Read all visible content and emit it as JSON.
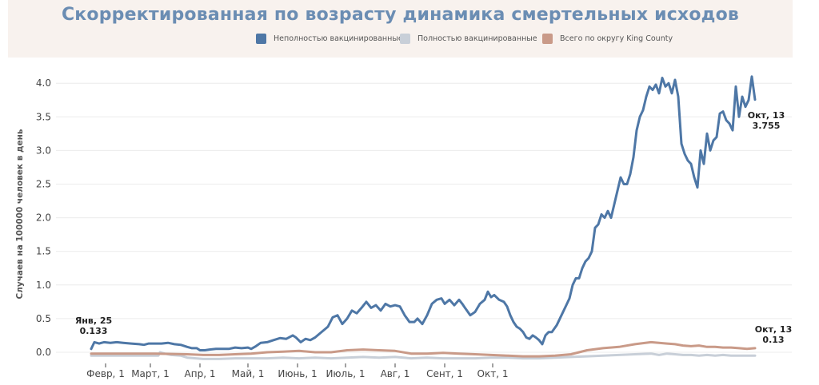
{
  "chart_data": {
    "type": "line",
    "title": "Скорректированная по возрасту динамика смертельных исходов",
    "ylabel": "Случаев на 100000 человек в день",
    "xlabel": "",
    "ylim": [
      0,
      4.3
    ],
    "yticks": [
      "0.0",
      "0.5",
      "1.0",
      "1.5",
      "2.0",
      "2.5",
      "3.0",
      "3.5",
      "4.0"
    ],
    "xticks": [
      "Февр, 1",
      "Март, 1",
      "Апр, 1",
      "Май, 1",
      "Июнь, 1",
      "Июль, 1",
      "Авг, 1",
      "Сент, 1",
      "Окт, 1"
    ],
    "grid": true,
    "legend_position": "top",
    "series": [
      {
        "name": "Неполностью вакцинированные",
        "color": "#4e77a6",
        "points": [
          [
            0,
            0.05
          ],
          [
            2,
            0.15
          ],
          [
            5,
            0.13
          ],
          [
            8,
            0.15
          ],
          [
            12,
            0.14
          ],
          [
            16,
            0.15
          ],
          [
            20,
            0.14
          ],
          [
            25,
            0.13
          ],
          [
            30,
            0.12
          ],
          [
            33,
            0.11
          ],
          [
            36,
            0.13
          ],
          [
            40,
            0.13
          ],
          [
            44,
            0.13
          ],
          [
            48,
            0.14
          ],
          [
            52,
            0.12
          ],
          [
            56,
            0.11
          ],
          [
            60,
            0.08
          ],
          [
            63,
            0.06
          ],
          [
            66,
            0.06
          ],
          [
            68,
            0.03
          ],
          [
            71,
            0.03
          ],
          [
            74,
            0.04
          ],
          [
            78,
            0.05
          ],
          [
            82,
            0.05
          ],
          [
            86,
            0.05
          ],
          [
            90,
            0.07
          ],
          [
            94,
            0.06
          ],
          [
            98,
            0.07
          ],
          [
            100,
            0.05
          ],
          [
            103,
            0.09
          ],
          [
            106,
            0.14
          ],
          [
            110,
            0.15
          ],
          [
            114,
            0.18
          ],
          [
            118,
            0.21
          ],
          [
            122,
            0.2
          ],
          [
            126,
            0.25
          ],
          [
            128,
            0.22
          ],
          [
            131,
            0.15
          ],
          [
            134,
            0.2
          ],
          [
            137,
            0.18
          ],
          [
            140,
            0.22
          ],
          [
            143,
            0.28
          ],
          [
            146,
            0.34
          ],
          [
            148,
            0.38
          ],
          [
            151,
            0.52
          ],
          [
            154,
            0.55
          ],
          [
            157,
            0.42
          ],
          [
            160,
            0.5
          ],
          [
            163,
            0.62
          ],
          [
            166,
            0.58
          ],
          [
            169,
            0.66
          ],
          [
            172,
            0.75
          ],
          [
            175,
            0.66
          ],
          [
            178,
            0.7
          ],
          [
            181,
            0.62
          ],
          [
            184,
            0.72
          ],
          [
            187,
            0.68
          ],
          [
            190,
            0.7
          ],
          [
            193,
            0.68
          ],
          [
            196,
            0.55
          ],
          [
            199,
            0.45
          ],
          [
            202,
            0.45
          ],
          [
            204,
            0.5
          ],
          [
            207,
            0.42
          ],
          [
            210,
            0.55
          ],
          [
            213,
            0.72
          ],
          [
            216,
            0.78
          ],
          [
            219,
            0.8
          ],
          [
            221,
            0.72
          ],
          [
            224,
            0.78
          ],
          [
            227,
            0.7
          ],
          [
            230,
            0.78
          ],
          [
            232,
            0.72
          ],
          [
            234,
            0.65
          ],
          [
            237,
            0.55
          ],
          [
            240,
            0.6
          ],
          [
            243,
            0.72
          ],
          [
            246,
            0.78
          ],
          [
            248,
            0.9
          ],
          [
            250,
            0.82
          ],
          [
            252,
            0.85
          ],
          [
            255,
            0.78
          ],
          [
            258,
            0.75
          ],
          [
            260,
            0.68
          ],
          [
            262,
            0.55
          ],
          [
            264,
            0.45
          ],
          [
            266,
            0.38
          ],
          [
            268,
            0.35
          ],
          [
            270,
            0.3
          ],
          [
            272,
            0.22
          ],
          [
            274,
            0.2
          ],
          [
            276,
            0.25
          ],
          [
            278,
            0.22
          ],
          [
            280,
            0.18
          ],
          [
            282,
            0.12
          ],
          [
            284,
            0.25
          ],
          [
            286,
            0.3
          ],
          [
            288,
            0.3
          ],
          [
            291,
            0.4
          ],
          [
            294,
            0.55
          ],
          [
            297,
            0.7
          ],
          [
            299,
            0.8
          ],
          [
            301,
            1.0
          ],
          [
            303,
            1.1
          ],
          [
            305,
            1.1
          ],
          [
            307,
            1.25
          ],
          [
            309,
            1.35
          ],
          [
            311,
            1.4
          ],
          [
            313,
            1.5
          ],
          [
            315,
            1.85
          ],
          [
            317,
            1.9
          ],
          [
            319,
            2.05
          ],
          [
            321,
            2.0
          ],
          [
            323,
            2.1
          ],
          [
            325,
            2.0
          ],
          [
            327,
            2.2
          ],
          [
            329,
            2.4
          ],
          [
            331,
            2.6
          ],
          [
            333,
            2.5
          ],
          [
            335,
            2.5
          ],
          [
            337,
            2.65
          ],
          [
            339,
            2.9
          ],
          [
            341,
            3.3
          ],
          [
            343,
            3.5
          ],
          [
            345,
            3.6
          ],
          [
            347,
            3.8
          ],
          [
            349,
            3.95
          ],
          [
            351,
            3.9
          ],
          [
            353,
            3.98
          ],
          [
            355,
            3.85
          ],
          [
            357,
            4.08
          ],
          [
            359,
            3.95
          ],
          [
            361,
            4.0
          ],
          [
            363,
            3.85
          ],
          [
            365,
            4.05
          ],
          [
            367,
            3.8
          ],
          [
            369,
            3.1
          ],
          [
            371,
            2.95
          ],
          [
            373,
            2.85
          ],
          [
            375,
            2.8
          ],
          [
            377,
            2.6
          ],
          [
            379,
            2.45
          ],
          [
            381,
            3.0
          ],
          [
            383,
            2.8
          ],
          [
            385,
            3.25
          ],
          [
            387,
            3.0
          ],
          [
            389,
            3.15
          ],
          [
            391,
            3.2
          ],
          [
            393,
            3.55
          ],
          [
            395,
            3.58
          ],
          [
            397,
            3.45
          ],
          [
            399,
            3.4
          ],
          [
            401,
            3.3
          ],
          [
            403,
            3.95
          ],
          [
            405,
            3.5
          ],
          [
            407,
            3.8
          ],
          [
            409,
            3.65
          ],
          [
            411,
            3.75
          ],
          [
            413,
            4.1
          ],
          [
            415,
            3.755
          ]
        ]
      },
      {
        "name": "Полностью вакцинированные",
        "color": "#c8cfd8",
        "points": [
          [
            0,
            -0.05
          ],
          [
            20,
            -0.05
          ],
          [
            39,
            -0.05
          ],
          [
            42,
            -0.05
          ],
          [
            43,
            0.0
          ],
          [
            46,
            -0.02
          ],
          [
            50,
            -0.04
          ],
          [
            56,
            -0.05
          ],
          [
            60,
            -0.08
          ],
          [
            70,
            -0.1
          ],
          [
            80,
            -0.1
          ],
          [
            90,
            -0.09
          ],
          [
            100,
            -0.09
          ],
          [
            110,
            -0.09
          ],
          [
            120,
            -0.08
          ],
          [
            130,
            -0.09
          ],
          [
            140,
            -0.08
          ],
          [
            150,
            -0.09
          ],
          [
            160,
            -0.08
          ],
          [
            170,
            -0.07
          ],
          [
            180,
            -0.08
          ],
          [
            190,
            -0.07
          ],
          [
            200,
            -0.09
          ],
          [
            210,
            -0.08
          ],
          [
            220,
            -0.09
          ],
          [
            230,
            -0.09
          ],
          [
            240,
            -0.09
          ],
          [
            250,
            -0.08
          ],
          [
            260,
            -0.08
          ],
          [
            270,
            -0.09
          ],
          [
            280,
            -0.09
          ],
          [
            290,
            -0.08
          ],
          [
            300,
            -0.07
          ],
          [
            310,
            -0.06
          ],
          [
            320,
            -0.05
          ],
          [
            330,
            -0.04
          ],
          [
            340,
            -0.03
          ],
          [
            350,
            -0.02
          ],
          [
            355,
            -0.04
          ],
          [
            360,
            -0.02
          ],
          [
            365,
            -0.03
          ],
          [
            370,
            -0.04
          ],
          [
            375,
            -0.04
          ],
          [
            380,
            -0.05
          ],
          [
            385,
            -0.04
          ],
          [
            390,
            -0.05
          ],
          [
            395,
            -0.04
          ],
          [
            400,
            -0.05
          ],
          [
            405,
            -0.05
          ],
          [
            410,
            -0.05
          ],
          [
            415,
            -0.05
          ]
        ]
      },
      {
        "name": "Всего по округу King County",
        "color": "#c99a88",
        "points": [
          [
            0,
            -0.02
          ],
          [
            20,
            -0.02
          ],
          [
            40,
            -0.02
          ],
          [
            60,
            -0.03
          ],
          [
            70,
            -0.04
          ],
          [
            80,
            -0.04
          ],
          [
            90,
            -0.03
          ],
          [
            100,
            -0.02
          ],
          [
            110,
            0.0
          ],
          [
            120,
            0.01
          ],
          [
            130,
            0.02
          ],
          [
            140,
            0.0
          ],
          [
            150,
            0.0
          ],
          [
            160,
            0.03
          ],
          [
            170,
            0.04
          ],
          [
            180,
            0.03
          ],
          [
            190,
            0.02
          ],
          [
            200,
            -0.02
          ],
          [
            210,
            -0.02
          ],
          [
            220,
            -0.01
          ],
          [
            230,
            -0.02
          ],
          [
            240,
            -0.03
          ],
          [
            250,
            -0.04
          ],
          [
            260,
            -0.05
          ],
          [
            270,
            -0.06
          ],
          [
            280,
            -0.06
          ],
          [
            290,
            -0.05
          ],
          [
            300,
            -0.03
          ],
          [
            310,
            0.03
          ],
          [
            320,
            0.06
          ],
          [
            330,
            0.08
          ],
          [
            340,
            0.12
          ],
          [
            350,
            0.15
          ],
          [
            355,
            0.14
          ],
          [
            360,
            0.13
          ],
          [
            365,
            0.12
          ],
          [
            370,
            0.1
          ],
          [
            375,
            0.09
          ],
          [
            380,
            0.1
          ],
          [
            385,
            0.08
          ],
          [
            390,
            0.08
          ],
          [
            395,
            0.07
          ],
          [
            400,
            0.07
          ],
          [
            405,
            0.06
          ],
          [
            410,
            0.05
          ],
          [
            415,
            0.06
          ]
        ]
      }
    ],
    "annotations": [
      {
        "line1": "Янв, 25",
        "line2": "0.133"
      },
      {
        "line1": "Окт, 13",
        "line2": "3.755"
      },
      {
        "line1": "Окт, 13",
        "line2": "0.13"
      }
    ]
  }
}
